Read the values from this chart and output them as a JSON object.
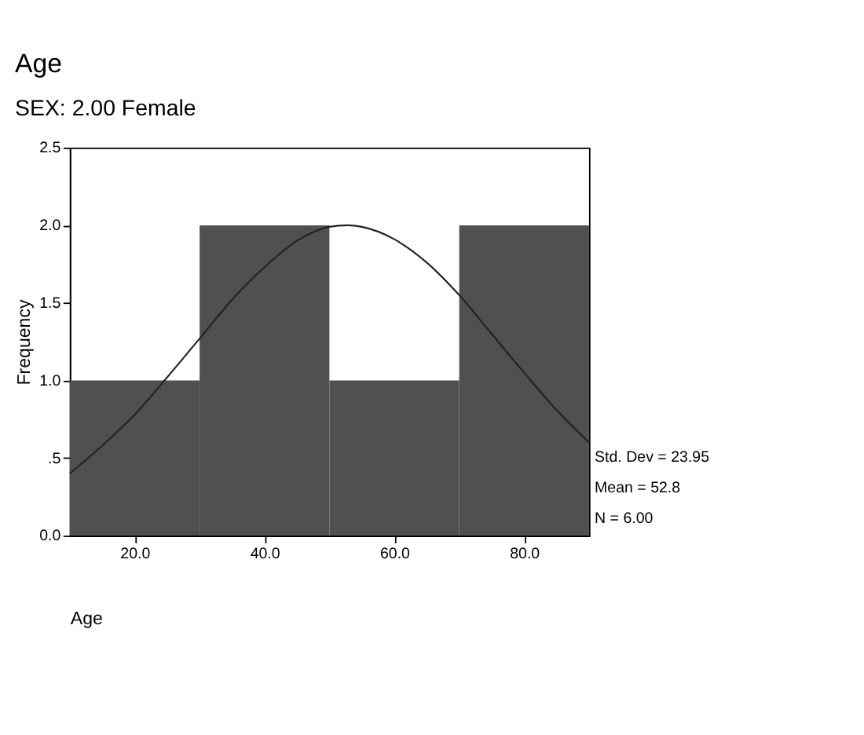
{
  "chart_data": {
    "type": "histogram",
    "title": "Age",
    "subtitle": "SEX:     2.00   Female",
    "xlabel": "Age",
    "ylabel": "Frequency",
    "bins": [
      10,
      30,
      50,
      70,
      90
    ],
    "values": [
      1,
      2,
      1,
      2
    ],
    "color": "#505050",
    "series": [
      {
        "type": "line",
        "color": "#222222",
        "x": [
          10,
          15,
          20,
          25,
          30,
          35,
          40,
          45,
          50,
          52.8,
          55,
          60,
          65,
          70,
          75,
          80,
          85,
          90
        ],
        "values": [
          0.4,
          0.58,
          0.78,
          1.02,
          1.27,
          1.52,
          1.73,
          1.9,
          1.99,
          2.0,
          1.99,
          1.91,
          1.76,
          1.55,
          1.3,
          1.05,
          0.81,
          0.6
        ]
      }
    ],
    "xlim": [
      10,
      90
    ],
    "xticks": [
      {
        "value": 20,
        "label": "20.0"
      },
      {
        "value": 40,
        "label": "40.0"
      },
      {
        "value": 60,
        "label": "60.0"
      },
      {
        "value": 80,
        "label": "80.0"
      }
    ],
    "ylim": [
      0,
      2.5
    ],
    "yticks": [
      {
        "value": 0,
        "label": "0.0"
      },
      {
        "value": 0.5,
        "label": ".5"
      },
      {
        "value": 1,
        "label": "1.0"
      },
      {
        "value": 1.5,
        "label": "1.5"
      },
      {
        "value": 2,
        "label": "2.0"
      },
      {
        "value": 2.5,
        "label": "2.5"
      }
    ],
    "annotations": [
      "Std. Dev = 23.95",
      "Mean = 52.8",
      "N = 6.00"
    ],
    "grid": false
  }
}
